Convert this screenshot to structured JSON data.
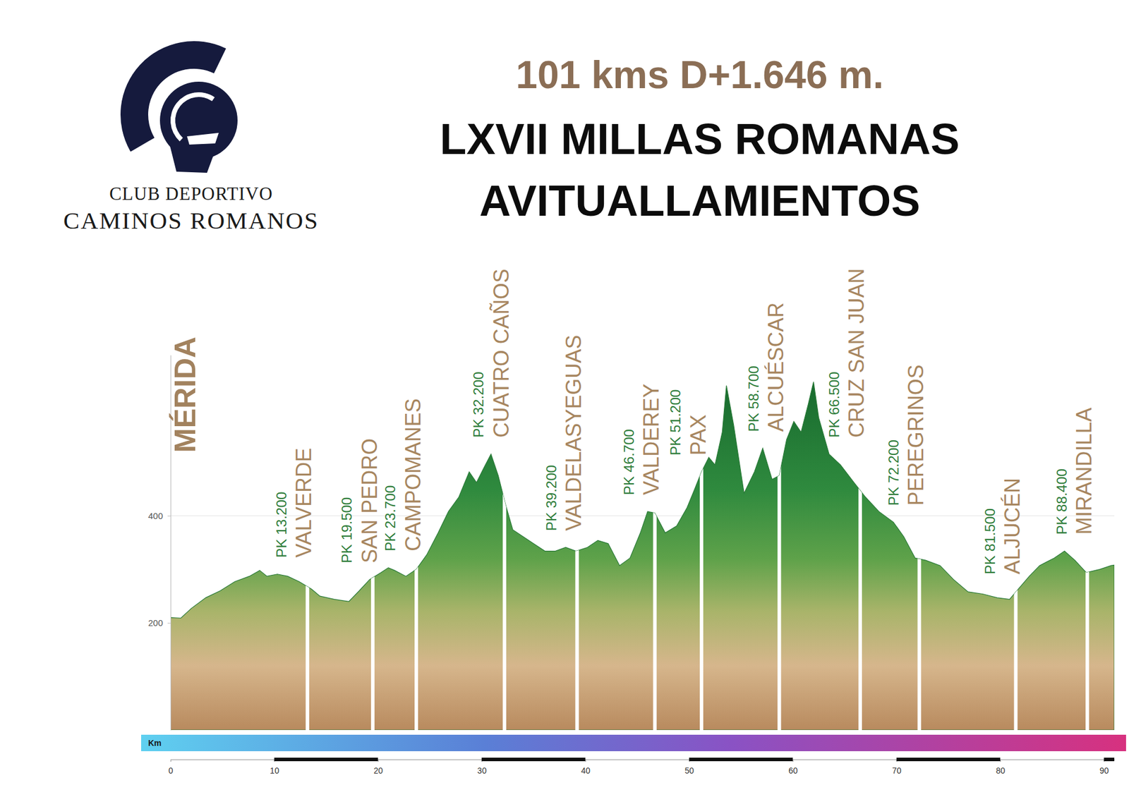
{
  "header": {
    "club_lines": [
      "CLUB DEPORTIVO",
      "CAMINOS ROMANOS"
    ],
    "title_lines": [
      "101 kms D+1.646 m.",
      "LXVII MILLAS ROMANAS",
      "AVITUALLAMIENTOS"
    ]
  },
  "chart_data": {
    "type": "area",
    "x": [
      0,
      1,
      2,
      3.4,
      4.8,
      6.2,
      7.6,
      8.6,
      9.3,
      10.3,
      11.3,
      12.4,
      13.6,
      14.4,
      15.8,
      17.2,
      18.2,
      19.2,
      20.3,
      21,
      21.6,
      22.7,
      23.7,
      24.7,
      25.8,
      26.8,
      27.8,
      28.8,
      29.5,
      30.2,
      30.9,
      31.6,
      32.3,
      33,
      34,
      35,
      36.1,
      37.1,
      38.1,
      39.1,
      40.2,
      41.2,
      42.2,
      43.3,
      44.3,
      45.3,
      46,
      46.7,
      47.7,
      48.8,
      49.8,
      50.5,
      51.2,
      51.9,
      52.5,
      53.2,
      53.6,
      54.3,
      55.3,
      56.3,
      57.1,
      58,
      58.7,
      59.4,
      60.1,
      60.8,
      61.5,
      62,
      62.5,
      63.5,
      64.6,
      65.9,
      67,
      68.3,
      69.7,
      70.7,
      71.8,
      72.8,
      74.2,
      75.5,
      76.9,
      78.3,
      79.7,
      80.9,
      81.6,
      82.8,
      83.8,
      85.2,
      86.2,
      87.2,
      88.3,
      89.6,
      90.7,
      91
    ],
    "values": [
      210,
      209,
      227,
      247,
      260,
      277,
      287,
      298,
      287,
      291,
      287,
      277,
      263,
      250,
      244,
      240,
      260,
      281,
      294,
      303,
      298,
      287,
      300,
      327,
      368,
      408,
      435,
      482,
      462,
      489,
      515,
      475,
      421,
      374,
      361,
      348,
      334,
      334,
      341,
      334,
      341,
      354,
      348,
      307,
      321,
      368,
      408,
      405,
      368,
      381,
      415,
      448,
      482,
      509,
      495,
      556,
      643,
      569,
      442,
      482,
      526,
      468,
      475,
      542,
      576,
      556,
      609,
      650,
      583,
      515,
      495,
      462,
      435,
      408,
      388,
      361,
      321,
      317,
      307,
      281,
      258,
      254,
      247,
      244,
      260,
      287,
      307,
      321,
      334,
      317,
      294,
      300,
      307,
      308
    ],
    "xlim": [
      0,
      91
    ],
    "ylim": [
      0,
      700
    ],
    "xticks": [
      0,
      10,
      20,
      30,
      40,
      50,
      60,
      70,
      80,
      90
    ],
    "yticks": [
      200,
      400
    ],
    "grid": true,
    "x_label": "Km",
    "start_label": "MÉRIDA",
    "stations": [
      {
        "km": 13.2,
        "pk": "PK 13.200",
        "name": "VALVERDE"
      },
      {
        "km": 19.5,
        "pk": "PK 19.500",
        "name": "SAN PEDRO"
      },
      {
        "km": 23.7,
        "pk": "PK 23.700",
        "name": "CAMPOMANES"
      },
      {
        "km": 32.2,
        "pk": "PK 32.200",
        "name": "CUATRO CAÑOS"
      },
      {
        "km": 39.2,
        "pk": "PK 39.200",
        "name": "VALDELASYEGUAS"
      },
      {
        "km": 46.7,
        "pk": "PK 46.700",
        "name": "VALDEREY"
      },
      {
        "km": 51.2,
        "pk": "PK 51.200",
        "name": "PAX"
      },
      {
        "km": 58.7,
        "pk": "PK 58.700",
        "name": "ALCUÉSCAR"
      },
      {
        "km": 66.5,
        "pk": "PK 66.500",
        "name": "CRUZ SAN JUAN"
      },
      {
        "km": 72.2,
        "pk": "PK 72.200",
        "name": "PEREGRINOS"
      },
      {
        "km": 81.5,
        "pk": "PK 81.500",
        "name": "ALJUCÉN"
      },
      {
        "km": 88.4,
        "pk": "PK 88.400",
        "name": "MIRANDILLA"
      }
    ]
  }
}
